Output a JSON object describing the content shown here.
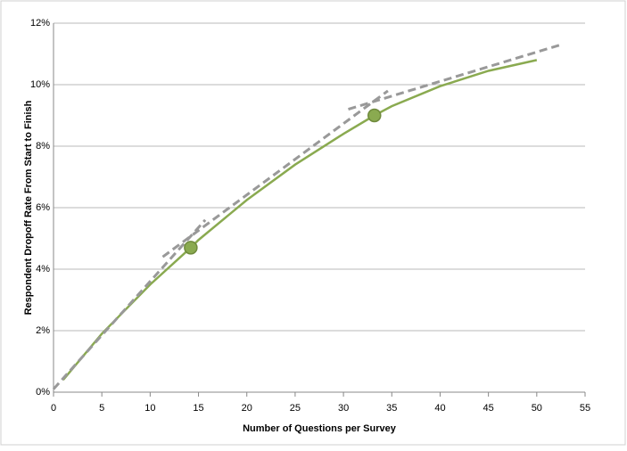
{
  "chart_data": {
    "type": "line",
    "xlabel": "Number of Questions per Survey",
    "ylabel": "Respondent Dropoff Rate From Start to Finish",
    "xlim": [
      0,
      55
    ],
    "xticks": [
      0,
      5,
      10,
      15,
      20,
      25,
      30,
      35,
      40,
      45,
      50,
      55
    ],
    "ylim": [
      0,
      12
    ],
    "yticks": [
      {
        "value": 0,
        "label": "0%"
      },
      {
        "value": 2,
        "label": "2%"
      },
      {
        "value": 4,
        "label": "4%"
      },
      {
        "value": 6,
        "label": "6%"
      },
      {
        "value": 8,
        "label": "8%"
      },
      {
        "value": 10,
        "label": "10%"
      },
      {
        "value": 12,
        "label": "12%"
      }
    ],
    "grid": true,
    "series": [
      {
        "color": "#8aaa50",
        "style": "solid",
        "markers": false,
        "x": [
          1,
          5,
          10,
          14.2,
          15,
          20,
          25,
          30,
          33.2,
          35,
          40,
          45,
          50
        ],
        "values": [
          0.4,
          1.9,
          3.5,
          4.7,
          4.95,
          6.25,
          7.4,
          8.4,
          9.0,
          9.3,
          9.95,
          10.45,
          10.8
        ]
      },
      {
        "color": "#999999",
        "style": "dashed",
        "markers": false,
        "x": [
          0,
          15.7
        ],
        "values": [
          0.1,
          5.6
        ]
      },
      {
        "color": "#999999",
        "style": "dashed",
        "markers": false,
        "x": [
          11.3,
          34.6
        ],
        "values": [
          4.4,
          9.8
        ]
      },
      {
        "color": "#999999",
        "style": "dashed",
        "markers": false,
        "x": [
          30.5,
          52.5
        ],
        "values": [
          9.2,
          11.3
        ]
      },
      {
        "color": "#8aaa50",
        "style": "none",
        "markers": true,
        "x": [
          14.2,
          33.2
        ],
        "values": [
          4.7,
          9.0
        ]
      }
    ]
  }
}
